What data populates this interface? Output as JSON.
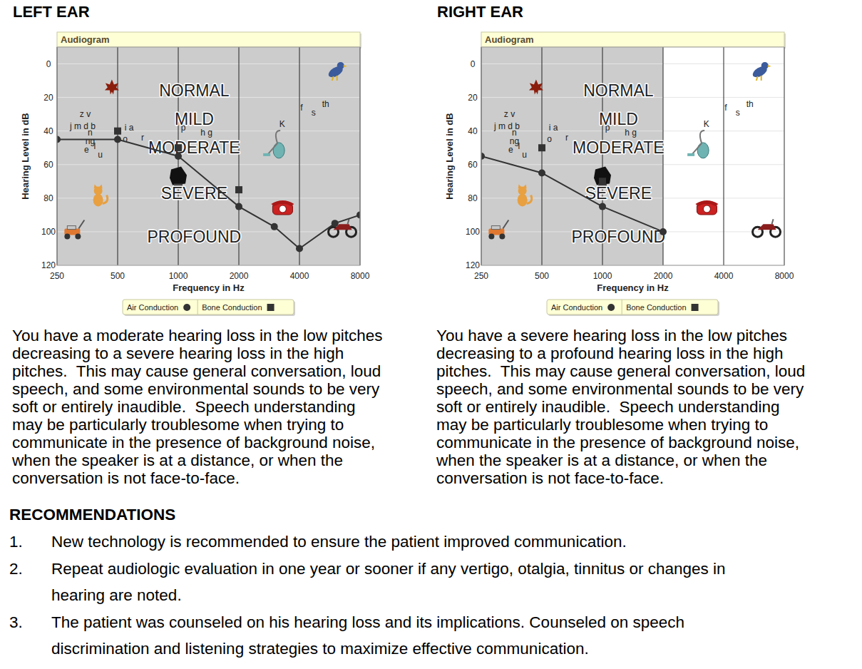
{
  "chart_data": [
    {
      "type": "line",
      "title": "LEFT EAR",
      "subtitle": "Audiogram",
      "x_label": "Frequency in Hz",
      "y_label": "Hearing Level in dB",
      "log": "x",
      "grid": true,
      "legend": "bottom",
      "xlim": [
        250,
        8000
      ],
      "ylim": [
        120,
        -10
      ],
      "xticks": [
        250,
        500,
        1000,
        2000,
        4000,
        8000
      ],
      "yticks": [
        0,
        20,
        40,
        60,
        80,
        100,
        120
      ],
      "series": [
        {
          "name": "Air Conduction",
          "color": "#333333",
          "marker": "circle",
          "line_style": "solid",
          "x": [
            250,
            500,
            1000,
            2000,
            3000,
            4000,
            6000,
            8000
          ],
          "values": [
            45,
            45,
            55,
            85,
            97,
            110,
            95,
            90
          ]
        },
        {
          "name": "Bone Conduction",
          "color": "#333333",
          "marker": "square",
          "line_style": "none",
          "x": [
            500,
            1000,
            2000
          ],
          "values": [
            40,
            50,
            75
          ]
        }
      ],
      "degree_labels": [
        {
          "text": "NORMAL",
          "x": 1200,
          "y": 16
        },
        {
          "text": "MILD",
          "x": 1200,
          "y": 33
        },
        {
          "text": "MODERATE",
          "x": 1200,
          "y": 50
        },
        {
          "text": "SEVERE",
          "x": 1200,
          "y": 77
        },
        {
          "text": "PROFOUND",
          "x": 1200,
          "y": 103
        }
      ],
      "annotations": [
        {
          "text": "z v",
          "x": 345,
          "y": 30
        },
        {
          "text": "j m d b",
          "x": 335,
          "y": 37
        },
        {
          "text": "n",
          "x": 365,
          "y": 41
        },
        {
          "text": "ng",
          "x": 365,
          "y": 46
        },
        {
          "text": "e",
          "x": 350,
          "y": 51
        },
        {
          "text": "l",
          "x": 385,
          "y": 49
        },
        {
          "text": "u",
          "x": 410,
          "y": 54
        },
        {
          "text": "i a",
          "x": 570,
          "y": 38
        },
        {
          "text": "o",
          "x": 545,
          "y": 45
        },
        {
          "text": "r",
          "x": 665,
          "y": 44
        },
        {
          "text": "p",
          "x": 1060,
          "y": 38
        },
        {
          "text": "h g",
          "x": 1380,
          "y": 41
        },
        {
          "text": "K",
          "x": 3280,
          "y": 36
        },
        {
          "text": "f",
          "x": 4100,
          "y": 26
        },
        {
          "text": "s",
          "x": 4700,
          "y": 29
        },
        {
          "text": "th",
          "x": 5400,
          "y": 24
        }
      ],
      "caption": [
        "You have a moderate hearing loss in the low pitches",
        "decreasing to a severe hearing loss in the high",
        "pitches.  This may cause general conversation, loud",
        "speech, and some environmental sounds to be very",
        "soft or entirely inaudible.  Speech understanding",
        "may be particularly troublesome when trying to",
        "communicate in the presence of background noise,",
        "when the speaker is at a distance, or when the",
        "conversation is not face-to-face."
      ]
    },
    {
      "type": "line",
      "title": "RIGHT EAR",
      "subtitle": "Audiogram",
      "x_label": "Frequency in Hz",
      "y_label": "Hearing Level in dB",
      "log": "x",
      "grid": true,
      "legend": "bottom",
      "xlim": [
        250,
        8000
      ],
      "ylim": [
        120,
        -10
      ],
      "xticks": [
        250,
        500,
        1000,
        2000,
        4000,
        8000
      ],
      "yticks": [
        0,
        20,
        40,
        60,
        80,
        100,
        120
      ],
      "series": [
        {
          "name": "Air Conduction",
          "color": "#333333",
          "marker": "circle",
          "line_style": "solid",
          "x": [
            250,
            500,
            1000,
            2000
          ],
          "values": [
            55,
            65,
            85,
            100
          ]
        },
        {
          "name": "Bone Conduction",
          "color": "#333333",
          "marker": "square",
          "line_style": "none",
          "x": [
            500,
            1000
          ],
          "values": [
            50,
            70
          ]
        }
      ],
      "degree_labels": [
        {
          "text": "NORMAL",
          "x": 1200,
          "y": 16
        },
        {
          "text": "MILD",
          "x": 1200,
          "y": 33
        },
        {
          "text": "MODERATE",
          "x": 1200,
          "y": 50
        },
        {
          "text": "SEVERE",
          "x": 1200,
          "y": 77
        },
        {
          "text": "PROFOUND",
          "x": 1200,
          "y": 103
        }
      ],
      "annotations": [
        {
          "text": "z v",
          "x": 345,
          "y": 30
        },
        {
          "text": "j m d b",
          "x": 335,
          "y": 37
        },
        {
          "text": "n",
          "x": 365,
          "y": 41
        },
        {
          "text": "ng",
          "x": 365,
          "y": 46
        },
        {
          "text": "e",
          "x": 350,
          "y": 51
        },
        {
          "text": "l",
          "x": 385,
          "y": 49
        },
        {
          "text": "u",
          "x": 410,
          "y": 54
        },
        {
          "text": "i a",
          "x": 570,
          "y": 38
        },
        {
          "text": "o",
          "x": 545,
          "y": 45
        },
        {
          "text": "r",
          "x": 665,
          "y": 44
        },
        {
          "text": "p",
          "x": 1060,
          "y": 38
        },
        {
          "text": "h g",
          "x": 1380,
          "y": 41
        },
        {
          "text": "K",
          "x": 3280,
          "y": 36
        },
        {
          "text": "f",
          "x": 4100,
          "y": 26
        },
        {
          "text": "s",
          "x": 4700,
          "y": 29
        },
        {
          "text": "th",
          "x": 5400,
          "y": 24
        }
      ],
      "caption": [
        "You have a severe hearing loss in the low pitches",
        "decreasing to a profound hearing loss in the high",
        "pitches.  This may cause general conversation, loud",
        "speech, and some environmental sounds to be very",
        "soft or entirely inaudible.  Speech understanding",
        "may be particularly troublesome when trying to",
        "communicate in the presence of background noise,",
        "when the speaker is at a distance, or when the",
        "conversation is not face-to-face."
      ]
    }
  ],
  "report": {
    "recommendations": {
      "heading": "RECOMMENDATIONS",
      "items": [
        {
          "number": "1.",
          "lines": [
            "New technology is recommended to ensure the patient improved communication."
          ]
        },
        {
          "number": "2.",
          "lines": [
            "Repeat audiologic evaluation in one year or sooner if any vertigo, otalgia, tinnitus or changes in",
            "hearing are noted."
          ]
        },
        {
          "number": "3.",
          "lines": [
            "The patient was counseled on his hearing loss and its implications. Counseled on speech",
            "discrimination and listening strategies to maximize effective communication."
          ]
        }
      ]
    }
  }
}
